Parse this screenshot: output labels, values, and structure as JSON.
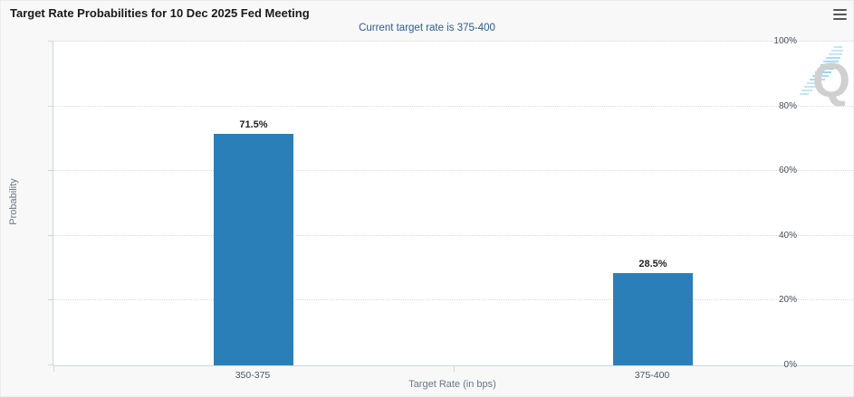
{
  "header": {
    "title": "Target Rate Probabilities for 10 Dec 2025 Fed Meeting",
    "menu_icon": "hamburger-icon"
  },
  "chart_data": {
    "type": "bar",
    "title": "Target Rate Probabilities for 10 Dec 2025 Fed Meeting",
    "subtitle": "Current target rate is 375-400",
    "categories": [
      "350-375",
      "375-400"
    ],
    "values": [
      71.5,
      28.5
    ],
    "data_labels": [
      "71.5%",
      "28.5%"
    ],
    "xlabel": "Target Rate (in bps)",
    "ylabel": "Probability",
    "ylim": [
      0,
      100
    ],
    "ytick_step": 20,
    "ytick_labels": [
      "0%",
      "20%",
      "40%",
      "60%",
      "80%",
      "100%"
    ],
    "grid": "dotted-horizontal",
    "legend": "none",
    "bar_color": "#2b7fb8"
  },
  "colors": {
    "bar_blue": "#2b7fb8",
    "subtitle_blue": "#2e5c8a",
    "page_bg": "#f8f8f8",
    "plot_bg": "#ffffff",
    "axis_line": "#d0d7e2"
  },
  "watermark": {
    "letter": "Q"
  }
}
